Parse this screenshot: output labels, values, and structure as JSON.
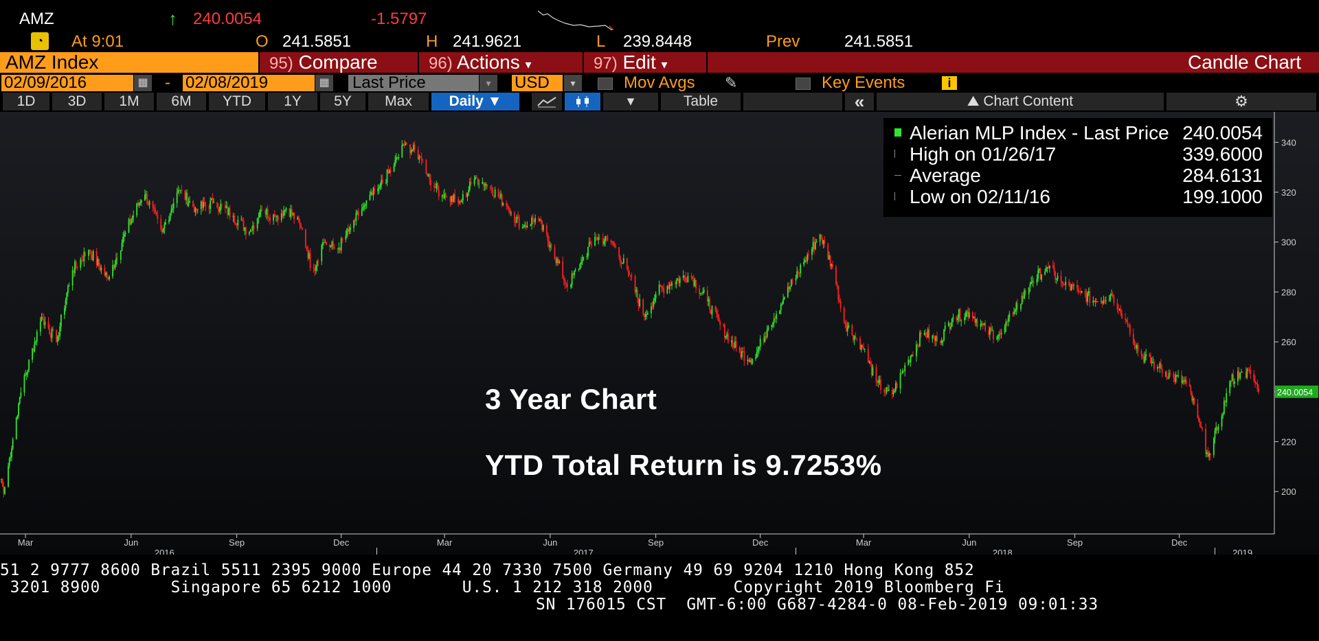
{
  "quote": {
    "ticker": "AMZ",
    "last": "240.0054",
    "change": "-1.5797",
    "time_label": "At 9:01",
    "open_label": "O",
    "open": "241.5851",
    "high_label": "H",
    "high": "241.9621",
    "low_label": "L",
    "low": "239.8448",
    "prev_label": "Prev",
    "prev": "241.5851"
  },
  "cmdbar": {
    "security": "AMZ Index",
    "compare_num": "95)",
    "compare": "Compare",
    "actions_num": "96)",
    "actions": "Actions",
    "edit_num": "97)",
    "edit": "Edit",
    "title": "Candle Chart"
  },
  "daterow": {
    "start": "02/09/2016",
    "sep": "-",
    "end": "02/08/2019",
    "field": "Last Price",
    "currency": "USD",
    "mov_avgs": "Mov Avgs",
    "key_events": "Key Events"
  },
  "tabs": {
    "t1d": "1D",
    "t3d": "3D",
    "t1m": "1M",
    "t6m": "6M",
    "tytd": "YTD",
    "t1y": "1Y",
    "t5y": "5Y",
    "tmax": "Max",
    "daily": "Daily",
    "table": "Table",
    "chart_content": "Chart Content"
  },
  "legend": {
    "name": "Alerian MLP Index - Last Price",
    "last": "240.0054",
    "high_label": "High on 01/26/17",
    "high": "339.6000",
    "avg_label": "Average",
    "avg": "284.6131",
    "low_label": "Low on 02/11/16",
    "low": "199.1000"
  },
  "annotations": {
    "line1": "3 Year Chart",
    "line2": "YTD Total Return is 9.7253%"
  },
  "colors": {
    "up": "#2ee82e",
    "down": "#ff2020",
    "accent": "#ff9c1a",
    "command_bar": "#8b0f14",
    "last_tag": "#1faa1f"
  },
  "chart_data": {
    "type": "candlestick",
    "title": "",
    "xlabel": "",
    "ylabel": "",
    "ylim": [
      183,
      350
    ],
    "yticks": [
      200,
      220,
      240,
      260,
      280,
      300,
      320,
      340
    ],
    "last_price_label": "240.0054",
    "x_month_ticks": [
      {
        "date": "2016-03",
        "label": "Mar"
      },
      {
        "date": "2016-06",
        "label": "Jun"
      },
      {
        "date": "2016-09",
        "label": "Sep"
      },
      {
        "date": "2016-12",
        "label": "Dec"
      },
      {
        "date": "2017-03",
        "label": "Mar"
      },
      {
        "date": "2017-06",
        "label": "Jun"
      },
      {
        "date": "2017-09",
        "label": "Sep"
      },
      {
        "date": "2017-12",
        "label": "Dec"
      },
      {
        "date": "2018-03",
        "label": "Mar"
      },
      {
        "date": "2018-06",
        "label": "Jun"
      },
      {
        "date": "2018-09",
        "label": "Sep"
      },
      {
        "date": "2018-12",
        "label": "Dec"
      }
    ],
    "x_year_labels": [
      "2016",
      "2017",
      "2018",
      "2019"
    ],
    "series": [
      {
        "values": [
          {
            "date": "2016-02-09",
            "close": 205
          },
          {
            "date": "2016-02-11",
            "close": 199.1
          },
          {
            "date": "2016-02-25",
            "close": 238
          },
          {
            "date": "2016-03-15",
            "close": 270
          },
          {
            "date": "2016-03-28",
            "close": 260
          },
          {
            "date": "2016-04-10",
            "close": 288
          },
          {
            "date": "2016-04-25",
            "close": 297
          },
          {
            "date": "2016-05-12",
            "close": 285
          },
          {
            "date": "2016-05-28",
            "close": 305
          },
          {
            "date": "2016-06-12",
            "close": 320
          },
          {
            "date": "2016-06-28",
            "close": 304
          },
          {
            "date": "2016-07-12",
            "close": 321
          },
          {
            "date": "2016-07-28",
            "close": 313
          },
          {
            "date": "2016-08-12",
            "close": 316
          },
          {
            "date": "2016-08-28",
            "close": 311
          },
          {
            "date": "2016-09-12",
            "close": 304
          },
          {
            "date": "2016-09-22",
            "close": 313
          },
          {
            "date": "2016-10-05",
            "close": 310
          },
          {
            "date": "2016-10-15",
            "close": 314
          },
          {
            "date": "2016-10-28",
            "close": 305
          },
          {
            "date": "2016-11-06",
            "close": 288
          },
          {
            "date": "2016-11-15",
            "close": 300
          },
          {
            "date": "2016-11-28",
            "close": 297
          },
          {
            "date": "2016-12-08",
            "close": 305
          },
          {
            "date": "2016-12-20",
            "close": 314
          },
          {
            "date": "2017-01-03",
            "close": 322
          },
          {
            "date": "2017-01-15",
            "close": 330
          },
          {
            "date": "2017-01-26",
            "close": 339.6
          },
          {
            "date": "2017-02-08",
            "close": 334
          },
          {
            "date": "2017-02-20",
            "close": 322
          },
          {
            "date": "2017-03-03",
            "close": 318
          },
          {
            "date": "2017-03-15",
            "close": 316
          },
          {
            "date": "2017-03-28",
            "close": 326
          },
          {
            "date": "2017-04-10",
            "close": 322
          },
          {
            "date": "2017-04-25",
            "close": 314
          },
          {
            "date": "2017-05-08",
            "close": 306
          },
          {
            "date": "2017-05-20",
            "close": 310
          },
          {
            "date": "2017-06-02",
            "close": 298
          },
          {
            "date": "2017-06-16",
            "close": 282
          },
          {
            "date": "2017-06-28",
            "close": 292
          },
          {
            "date": "2017-07-10",
            "close": 302
          },
          {
            "date": "2017-07-25",
            "close": 300
          },
          {
            "date": "2017-08-08",
            "close": 288
          },
          {
            "date": "2017-08-22",
            "close": 270
          },
          {
            "date": "2017-09-02",
            "close": 280
          },
          {
            "date": "2017-09-16",
            "close": 284
          },
          {
            "date": "2017-10-01",
            "close": 287
          },
          {
            "date": "2017-10-15",
            "close": 277
          },
          {
            "date": "2017-10-28",
            "close": 266
          },
          {
            "date": "2017-11-12",
            "close": 256
          },
          {
            "date": "2017-11-25",
            "close": 253
          },
          {
            "date": "2017-12-08",
            "close": 266
          },
          {
            "date": "2017-12-22",
            "close": 278
          },
          {
            "date": "2018-01-08",
            "close": 292
          },
          {
            "date": "2018-01-22",
            "close": 303
          },
          {
            "date": "2018-02-02",
            "close": 290
          },
          {
            "date": "2018-02-12",
            "close": 268
          },
          {
            "date": "2018-02-28",
            "close": 258
          },
          {
            "date": "2018-03-12",
            "close": 244
          },
          {
            "date": "2018-03-25",
            "close": 238
          },
          {
            "date": "2018-04-08",
            "close": 252
          },
          {
            "date": "2018-04-22",
            "close": 264
          },
          {
            "date": "2018-05-05",
            "close": 260
          },
          {
            "date": "2018-05-18",
            "close": 270
          },
          {
            "date": "2018-06-02",
            "close": 272
          },
          {
            "date": "2018-06-16",
            "close": 264
          },
          {
            "date": "2018-06-28",
            "close": 263
          },
          {
            "date": "2018-07-10",
            "close": 272
          },
          {
            "date": "2018-07-25",
            "close": 284
          },
          {
            "date": "2018-08-08",
            "close": 290
          },
          {
            "date": "2018-08-22",
            "close": 283
          },
          {
            "date": "2018-09-05",
            "close": 280
          },
          {
            "date": "2018-09-20",
            "close": 276
          },
          {
            "date": "2018-10-03",
            "close": 279
          },
          {
            "date": "2018-10-16",
            "close": 268
          },
          {
            "date": "2018-10-28",
            "close": 255
          },
          {
            "date": "2018-11-12",
            "close": 250
          },
          {
            "date": "2018-11-25",
            "close": 246
          },
          {
            "date": "2018-12-08",
            "close": 243
          },
          {
            "date": "2018-12-18",
            "close": 228
          },
          {
            "date": "2018-12-26",
            "close": 214
          },
          {
            "date": "2019-01-04",
            "close": 226
          },
          {
            "date": "2019-01-14",
            "close": 244
          },
          {
            "date": "2019-01-24",
            "close": 248
          },
          {
            "date": "2019-02-02",
            "close": 247
          },
          {
            "date": "2019-02-08",
            "close": 240.0054
          }
        ]
      }
    ]
  },
  "footer": {
    "line1": "51 2 9777 8600 Brazil 5511 2395 9000 Europe 44 20 7330 7500 Germany 49 69 9204 1210 Hong Kong 852",
    "line2": " 3201 8900       Singapore 65 6212 1000       U.S. 1 212 318 2000        Copyright 2019 Bloomberg Fi",
    "line3": "SN 176015 CST  GMT-6:00 G687-4284-0 08-Feb-2019 09:01:33"
  }
}
